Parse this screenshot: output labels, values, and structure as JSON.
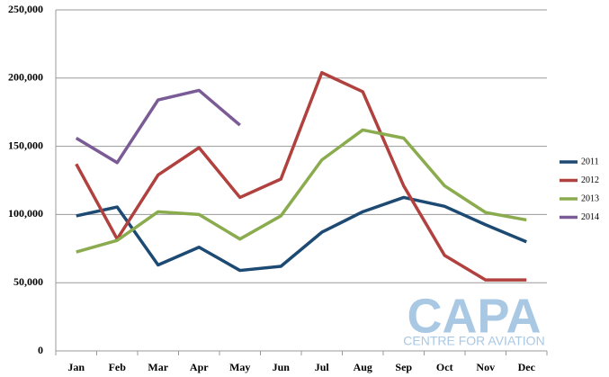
{
  "chart_data": {
    "type": "line",
    "categories": [
      "Jan",
      "Feb",
      "Mar",
      "Apr",
      "May",
      "Jun",
      "Jul",
      "Aug",
      "Sep",
      "Oct",
      "Nov",
      "Dec"
    ],
    "series": [
      {
        "name": "2011",
        "color": "#1d4a73",
        "values": [
          99000,
          105500,
          63000,
          76000,
          59000,
          62000,
          87000,
          102000,
          112500,
          106000,
          92500,
          80000
        ]
      },
      {
        "name": "2012",
        "color": "#b0413e",
        "values": [
          137000,
          82000,
          129000,
          149000,
          112500,
          126000,
          204000,
          190000,
          121000,
          70000,
          52000,
          52000
        ]
      },
      {
        "name": "2013",
        "color": "#8bab4f",
        "values": [
          72500,
          81000,
          102000,
          100000,
          82000,
          99000,
          140000,
          162000,
          156000,
          121000,
          101500,
          96000
        ]
      },
      {
        "name": "2014",
        "color": "#7a5b96",
        "values": [
          156000,
          138000,
          184000,
          191000,
          165500,
          null,
          null,
          null,
          null,
          null,
          null,
          null
        ]
      }
    ],
    "ylim": [
      0,
      250000
    ],
    "yticks": [
      0,
      {
        "value": 50000,
        "label": "50,000"
      },
      {
        "value": 100000,
        "label": "100,000"
      },
      {
        "value": 150000,
        "label": "150,000"
      },
      {
        "value": 200000,
        "label": "200,000"
      },
      {
        "value": 250000,
        "label": "250,000"
      }
    ],
    "grid": true,
    "legend": "right",
    "watermark": [
      "CAPA",
      "CENTRE FOR AVIATION"
    ]
  }
}
